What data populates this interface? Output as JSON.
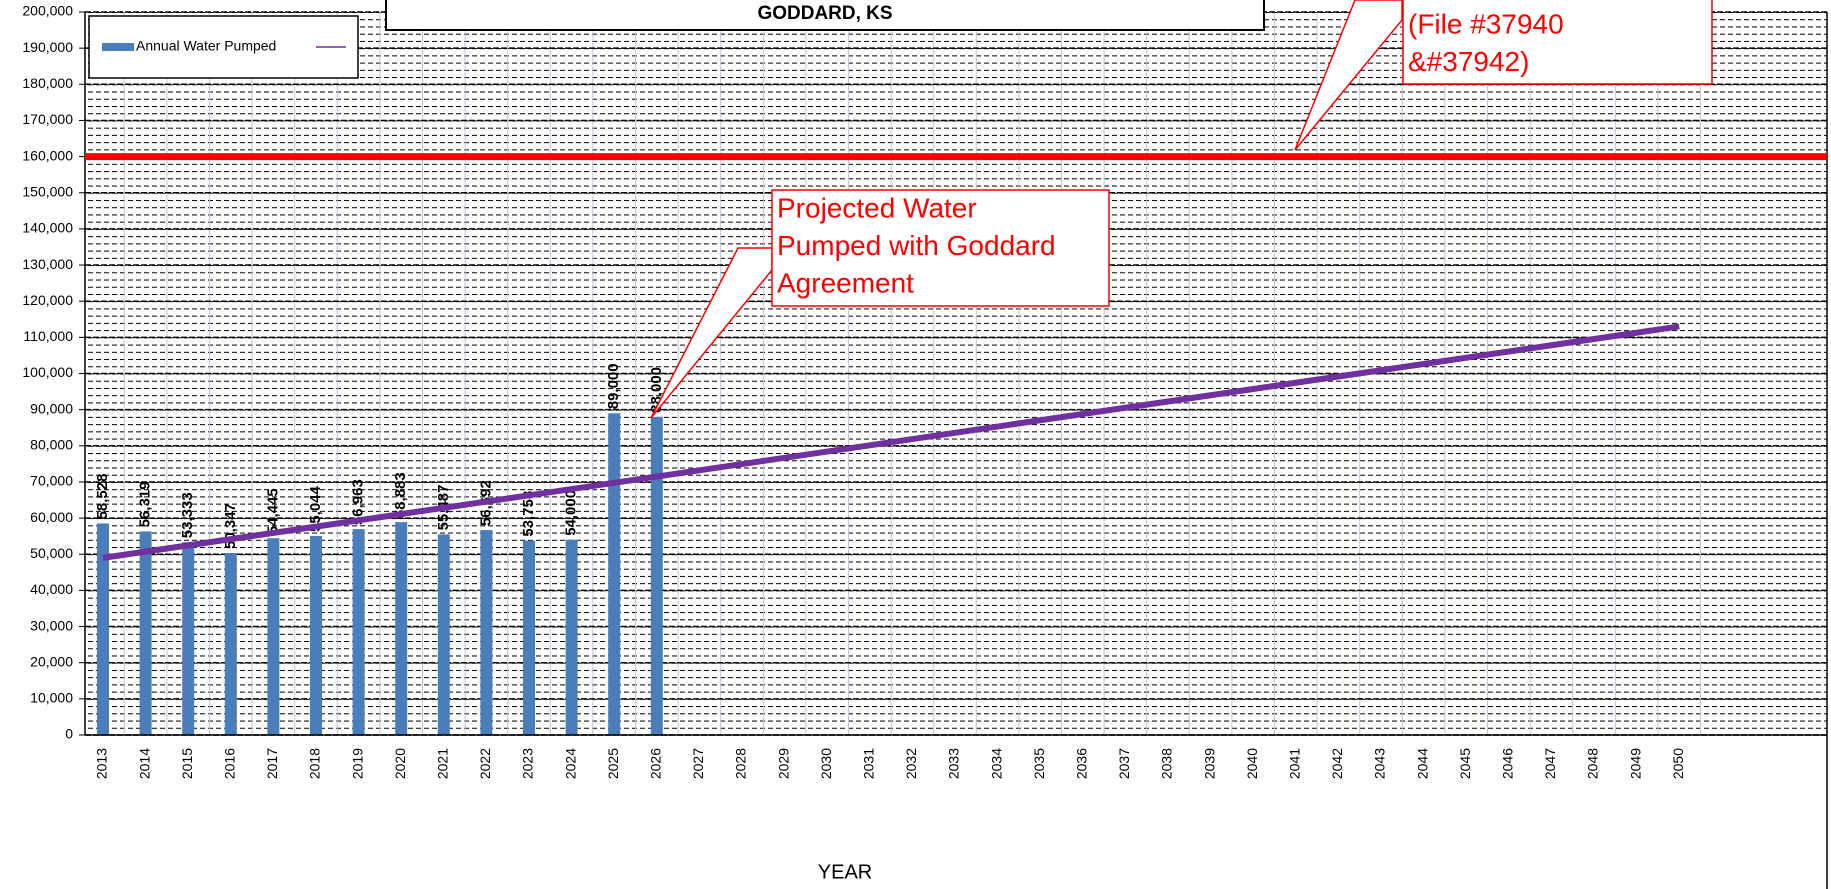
{
  "chart_data": {
    "type": "bar",
    "title": "GODDARD, KS",
    "x_label": "YEAR",
    "categories": [
      "2013",
      "2014",
      "2015",
      "2016",
      "2017",
      "2018",
      "2019",
      "2020",
      "2021",
      "2022",
      "2023",
      "2024",
      "2025",
      "2026",
      "2027",
      "2028",
      "2029",
      "2030",
      "2031",
      "2032",
      "2033",
      "2034",
      "2035",
      "2036",
      "2037",
      "2038",
      "2039",
      "2040",
      "2041",
      "2042",
      "2043",
      "2044",
      "2045",
      "2046",
      "2047",
      "2048",
      "2049",
      "2050"
    ],
    "series": [
      {
        "name": "Annual Water Pumped",
        "type": "bar",
        "color": "#4a7ebb",
        "values": [
          58528,
          56319,
          53333,
          50347,
          54445,
          55044,
          56963,
          58883,
          55487,
          56692,
          53758,
          54000,
          89000,
          88000,
          null,
          null,
          null,
          null,
          null,
          null,
          null,
          null,
          null,
          null,
          null,
          null,
          null,
          null,
          null,
          null,
          null,
          null,
          null,
          null,
          null,
          null,
          null,
          null
        ],
        "value_labels": [
          "58,528",
          "56,319",
          "53,333",
          "50,347",
          "54,445",
          "55,044",
          "56,963",
          "58,883",
          "55,487",
          "56,692",
          "53,758",
          "54,000",
          "89,000",
          "88,000",
          null,
          null,
          null,
          null,
          null,
          null,
          null,
          null,
          null,
          null,
          null,
          null,
          null,
          null,
          null,
          null,
          null,
          null,
          null,
          null,
          null,
          null,
          null,
          null
        ]
      },
      {
        "type": "line",
        "color": "#7030a0",
        "values": [
          49000,
          50730,
          52460,
          54190,
          55920,
          57650,
          59380,
          61110,
          62840,
          64570,
          66300,
          68030,
          69760,
          71490,
          73220,
          74950,
          76680,
          78410,
          80140,
          81870,
          83600,
          85330,
          87060,
          88790,
          90520,
          92250,
          93980,
          95710,
          97440,
          99170,
          100900,
          102630,
          104360,
          106090,
          107820,
          109550,
          111280,
          113010
        ]
      }
    ],
    "reference_line": {
      "value": 160000,
      "color": "#ff0000"
    },
    "ylim": [
      0,
      200000
    ],
    "yticks": [
      0,
      {
        "value": 10000,
        "label": "10,000"
      },
      {
        "value": 20000,
        "label": "20,000"
      },
      {
        "value": 30000,
        "label": "30,000"
      },
      {
        "value": 40000,
        "label": "40,000"
      },
      {
        "value": 50000,
        "label": "50,000"
      },
      {
        "value": 60000,
        "label": "60,000"
      },
      {
        "value": 70000,
        "label": "70,000"
      },
      {
        "value": 80000,
        "label": "80,000"
      },
      {
        "value": 90000,
        "label": "90,000"
      },
      {
        "value": 100000,
        "label": "100,000"
      },
      {
        "value": 110000,
        "label": "110,000"
      },
      {
        "value": 120000,
        "label": "120,000"
      },
      {
        "value": 130000,
        "label": "130,000"
      },
      {
        "value": 140000,
        "label": "140,000"
      },
      {
        "value": 150000,
        "label": "150,000"
      },
      {
        "value": 160000,
        "label": "160,000"
      },
      {
        "value": 170000,
        "label": "170,000"
      },
      {
        "value": 180000,
        "label": "180,000"
      },
      {
        "value": 190000,
        "label": "190,000"
      },
      {
        "value": 200000,
        "label": "200,000"
      }
    ],
    "grid": true,
    "legend": "upper left",
    "annotations": [
      {
        "lines": [
          "Projected Water",
          "Pumped with Goddard",
          "Agreement"
        ]
      },
      {
        "lines": [
          "(File #37940",
          "&#37942)"
        ]
      }
    ]
  }
}
